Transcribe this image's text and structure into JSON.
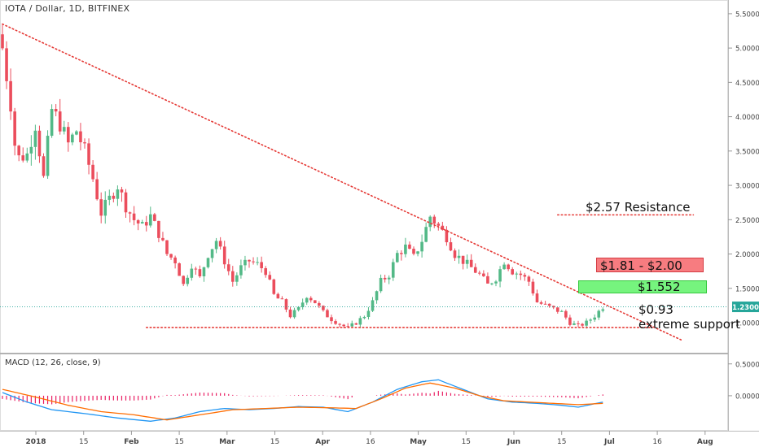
{
  "header": {
    "title": "IOTA / Dollar, 1D, BITFINEX"
  },
  "macd_header": {
    "title": "MACD (12, 26, close, 9)"
  },
  "annotations": {
    "resistance": "$2.57 Resistance",
    "red_zone": "$1.81 - $2.00",
    "green_zone": "$1.552",
    "support_price": "$0.93",
    "support_label": "extreme support"
  },
  "colors": {
    "up": "#53b987",
    "down": "#eb4d5c",
    "macd_line": "#2196f3",
    "signal_line": "#ff6d00",
    "histogram": "#e91e63",
    "trendline": "#e53935",
    "price_line": "#26a69a",
    "last_price_bg": "#26a69a",
    "red_zone": "#f77c80",
    "green_zone": "#76f47e"
  },
  "chart_data": [
    {
      "type": "candlestick",
      "title": "IOTA / Dollar, 1D, BITFINEX",
      "x_axis": {
        "ticks": [
          "2018",
          "15",
          "Feb",
          "15",
          "Mar",
          "15",
          "Apr",
          "16",
          "May",
          "15",
          "Jun",
          "15",
          "Jul",
          "16",
          "Aug"
        ]
      },
      "y_axis": {
        "ticks": [
          "1.0000",
          "1.5000",
          "2.0000",
          "2.5000",
          "3.0000",
          "3.5000",
          "4.0000",
          "4.5000",
          "5.0000",
          "5.5000"
        ],
        "range": [
          0.55,
          5.7
        ]
      },
      "last_price": "1.2300",
      "close_path": [
        [
          0,
          5.0
        ],
        [
          2,
          4.2
        ],
        [
          3,
          3.6
        ],
        [
          4,
          3.4
        ],
        [
          6,
          3.45
        ],
        [
          8,
          3.9
        ],
        [
          10,
          3.1
        ],
        [
          12,
          4.1
        ],
        [
          14,
          3.9
        ],
        [
          16,
          3.6
        ],
        [
          18,
          3.8
        ],
        [
          20,
          3.5
        ],
        [
          22,
          3.1
        ],
        [
          24,
          2.6
        ],
        [
          26,
          2.8
        ],
        [
          28,
          3.0
        ],
        [
          30,
          2.7
        ],
        [
          32,
          2.5
        ],
        [
          34,
          2.4
        ],
        [
          36,
          2.55
        ],
        [
          38,
          2.3
        ],
        [
          40,
          2.0
        ],
        [
          42,
          1.9
        ],
        [
          44,
          1.55
        ],
        [
          46,
          1.85
        ],
        [
          48,
          1.65
        ],
        [
          50,
          2.0
        ],
        [
          52,
          2.2
        ],
        [
          54,
          1.9
        ],
        [
          56,
          1.6
        ],
        [
          58,
          1.8
        ],
        [
          60,
          1.9
        ],
        [
          62,
          1.85
        ],
        [
          64,
          1.75
        ],
        [
          66,
          1.4
        ],
        [
          68,
          1.3
        ],
        [
          70,
          1.1
        ],
        [
          72,
          1.2
        ],
        [
          74,
          1.4
        ],
        [
          76,
          1.3
        ],
        [
          78,
          1.15
        ],
        [
          80,
          1.05
        ],
        [
          82,
          0.98
        ],
        [
          84,
          0.92
        ],
        [
          86,
          1.0
        ],
        [
          88,
          1.1
        ],
        [
          90,
          1.3
        ],
        [
          92,
          1.6
        ],
        [
          94,
          1.7
        ],
        [
          96,
          2.0
        ],
        [
          98,
          2.1
        ],
        [
          100,
          1.95
        ],
        [
          102,
          2.2
        ],
        [
          104,
          2.55
        ],
        [
          106,
          2.4
        ],
        [
          108,
          2.25
        ],
        [
          110,
          2.0
        ],
        [
          112,
          1.9
        ],
        [
          114,
          1.8
        ],
        [
          116,
          1.7
        ],
        [
          118,
          1.55
        ],
        [
          120,
          1.65
        ],
        [
          122,
          1.9
        ],
        [
          124,
          1.75
        ],
        [
          126,
          1.7
        ],
        [
          128,
          1.6
        ],
        [
          130,
          1.3
        ],
        [
          132,
          1.25
        ],
        [
          134,
          1.2
        ],
        [
          136,
          1.15
        ],
        [
          138,
          1.0
        ],
        [
          140,
          0.95
        ],
        [
          142,
          1.0
        ],
        [
          144,
          1.1
        ],
        [
          146,
          1.23
        ]
      ],
      "trendlines": [
        {
          "name": "descending resistance",
          "from": [
            0,
            5.35
          ],
          "to": [
            165,
            0.75
          ]
        },
        {
          "name": "support",
          "from": [
            35,
            0.93
          ],
          "to": [
            158,
            0.93
          ]
        },
        {
          "name": "resistance",
          "from": [
            135,
            2.57
          ],
          "to": [
            168,
            2.57
          ]
        }
      ],
      "zones": [
        {
          "name": "red",
          "low": 1.81,
          "high": 2.0
        },
        {
          "name": "green",
          "low": 1.5,
          "high": 1.66
        }
      ]
    },
    {
      "type": "line",
      "title": "MACD (12, 26, close, 9)",
      "y_axis": {
        "ticks": [
          "0.5000",
          "0.0000"
        ],
        "range": [
          -0.55,
          0.65
        ]
      },
      "series": [
        {
          "name": "MACD",
          "points": [
            [
              0,
              0.05
            ],
            [
              6,
              -0.1
            ],
            [
              12,
              -0.22
            ],
            [
              20,
              -0.28
            ],
            [
              28,
              -0.35
            ],
            [
              36,
              -0.4
            ],
            [
              42,
              -0.35
            ],
            [
              48,
              -0.25
            ],
            [
              54,
              -0.2
            ],
            [
              60,
              -0.22
            ],
            [
              66,
              -0.2
            ],
            [
              72,
              -0.17
            ],
            [
              78,
              -0.18
            ],
            [
              84,
              -0.25
            ],
            [
              90,
              -0.1
            ],
            [
              96,
              0.1
            ],
            [
              102,
              0.22
            ],
            [
              106,
              0.25
            ],
            [
              112,
              0.1
            ],
            [
              118,
              -0.05
            ],
            [
              124,
              -0.1
            ],
            [
              130,
              -0.12
            ],
            [
              136,
              -0.15
            ],
            [
              140,
              -0.18
            ],
            [
              146,
              -0.1
            ]
          ]
        },
        {
          "name": "Signal",
          "points": [
            [
              0,
              0.1
            ],
            [
              8,
              -0.02
            ],
            [
              16,
              -0.15
            ],
            [
              24,
              -0.25
            ],
            [
              32,
              -0.3
            ],
            [
              40,
              -0.38
            ],
            [
              48,
              -0.3
            ],
            [
              56,
              -0.22
            ],
            [
              64,
              -0.2
            ],
            [
              72,
              -0.18
            ],
            [
              80,
              -0.19
            ],
            [
              86,
              -0.2
            ],
            [
              92,
              -0.05
            ],
            [
              98,
              0.12
            ],
            [
              104,
              0.2
            ],
            [
              110,
              0.12
            ],
            [
              116,
              0.0
            ],
            [
              122,
              -0.08
            ],
            [
              128,
              -0.1
            ],
            [
              134,
              -0.12
            ],
            [
              140,
              -0.14
            ],
            [
              146,
              -0.12
            ]
          ]
        }
      ]
    }
  ]
}
